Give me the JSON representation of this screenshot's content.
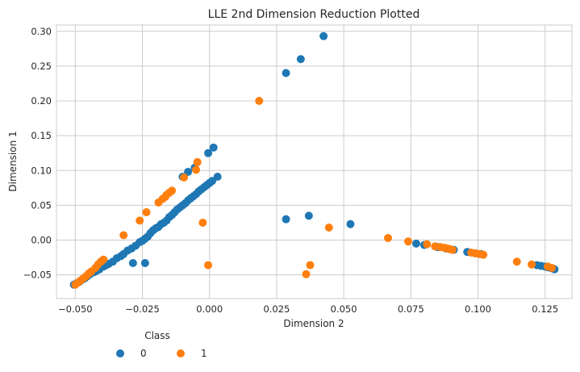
{
  "chart_data": {
    "type": "scatter",
    "title": "LLE 2nd Dimension Reduction Plotted",
    "xlabel": "Dimension 2",
    "ylabel": "Dimension 1",
    "xlim": [
      -0.057,
      0.135
    ],
    "ylim": [
      -0.084,
      0.309
    ],
    "xticks": [
      -0.05,
      -0.025,
      0.0,
      0.025,
      0.05,
      0.075,
      0.1,
      0.125
    ],
    "xtick_labels": [
      "−0.050",
      "−0.025",
      "0.000",
      "0.025",
      "0.050",
      "0.075",
      "0.100",
      "0.125"
    ],
    "yticks": [
      -0.05,
      0.0,
      0.05,
      0.1,
      0.15,
      0.2,
      0.25,
      0.3
    ],
    "ytick_labels": [
      "−0.05",
      "0.00",
      "0.05",
      "0.10",
      "0.15",
      "0.20",
      "0.25",
      "0.30"
    ],
    "grid": true,
    "legend": {
      "title": "Class",
      "placement": "below-left",
      "entries": [
        "0",
        "1"
      ]
    },
    "series": [
      {
        "name": "0",
        "color": "#1f77b4",
        "points": [
          [
            -0.0505,
            -0.064
          ],
          [
            -0.0495,
            -0.062
          ],
          [
            -0.0485,
            -0.06
          ],
          [
            -0.0475,
            -0.057
          ],
          [
            -0.0465,
            -0.055
          ],
          [
            -0.0455,
            -0.052
          ],
          [
            -0.0445,
            -0.049
          ],
          [
            -0.043,
            -0.046
          ],
          [
            -0.042,
            -0.044
          ],
          [
            -0.041,
            -0.042
          ],
          [
            -0.0395,
            -0.038
          ],
          [
            -0.0385,
            -0.036
          ],
          [
            -0.0375,
            -0.034
          ],
          [
            -0.036,
            -0.031
          ],
          [
            -0.0345,
            -0.026
          ],
          [
            -0.033,
            -0.023
          ],
          [
            -0.032,
            -0.02
          ],
          [
            -0.0305,
            -0.015
          ],
          [
            -0.029,
            -0.012
          ],
          [
            -0.0275,
            -0.008
          ],
          [
            -0.026,
            -0.003
          ],
          [
            -0.025,
            -0.001
          ],
          [
            -0.024,
            0.002
          ],
          [
            -0.023,
            0.005
          ],
          [
            -0.022,
            0.01
          ],
          [
            -0.021,
            0.014
          ],
          [
            -0.02,
            0.017
          ],
          [
            -0.019,
            0.019
          ],
          [
            -0.018,
            0.023
          ],
          [
            -0.017,
            0.025
          ],
          [
            -0.016,
            0.028
          ],
          [
            -0.015,
            0.033
          ],
          [
            -0.014,
            0.036
          ],
          [
            -0.013,
            0.04
          ],
          [
            -0.012,
            0.044
          ],
          [
            -0.011,
            0.047
          ],
          [
            -0.01,
            0.05
          ],
          [
            -0.009,
            0.053
          ],
          [
            -0.008,
            0.057
          ],
          [
            -0.007,
            0.06
          ],
          [
            -0.006,
            0.063
          ],
          [
            -0.005,
            0.066
          ],
          [
            -0.004,
            0.07
          ],
          [
            -0.003,
            0.073
          ],
          [
            -0.002,
            0.076
          ],
          [
            -0.001,
            0.079
          ],
          [
            0.0,
            0.082
          ],
          [
            0.001,
            0.085
          ],
          [
            0.003,
            0.091
          ],
          [
            -0.01,
            0.091
          ],
          [
            -0.008,
            0.098
          ],
          [
            -0.0055,
            0.104
          ],
          [
            -0.0005,
            0.125
          ],
          [
            0.0015,
            0.133
          ],
          [
            -0.0285,
            -0.033
          ],
          [
            -0.024,
            -0.033
          ],
          [
            0.0285,
            0.24
          ],
          [
            0.034,
            0.26
          ],
          [
            0.0425,
            0.293
          ],
          [
            0.0285,
            0.03
          ],
          [
            0.037,
            0.035
          ],
          [
            0.0525,
            0.023
          ],
          [
            0.077,
            -0.005
          ],
          [
            0.08,
            -0.007
          ],
          [
            0.085,
            -0.01
          ],
          [
            0.088,
            -0.012
          ],
          [
            0.091,
            -0.014
          ],
          [
            0.096,
            -0.017
          ],
          [
            0.099,
            -0.019
          ],
          [
            0.101,
            -0.02
          ],
          [
            0.122,
            -0.036
          ],
          [
            0.1235,
            -0.037
          ],
          [
            0.125,
            -0.038
          ],
          [
            0.126,
            -0.039
          ],
          [
            0.127,
            -0.04
          ],
          [
            0.128,
            -0.041
          ],
          [
            0.1285,
            -0.042
          ]
        ]
      },
      {
        "name": "1",
        "color": "#ff7f0e",
        "points": [
          [
            -0.05,
            -0.064
          ],
          [
            -0.049,
            -0.061
          ],
          [
            -0.048,
            -0.058
          ],
          [
            -0.047,
            -0.055
          ],
          [
            -0.046,
            -0.052
          ],
          [
            -0.045,
            -0.048
          ],
          [
            -0.044,
            -0.045
          ],
          [
            -0.0425,
            -0.04
          ],
          [
            -0.0415,
            -0.035
          ],
          [
            -0.0405,
            -0.031
          ],
          [
            -0.0395,
            -0.028
          ],
          [
            -0.032,
            0.007
          ],
          [
            -0.026,
            0.028
          ],
          [
            -0.0235,
            0.04
          ],
          [
            -0.019,
            0.054
          ],
          [
            -0.0175,
            0.059
          ],
          [
            -0.0165,
            0.062
          ],
          [
            -0.016,
            0.065
          ],
          [
            -0.015,
            0.068
          ],
          [
            -0.014,
            0.071
          ],
          [
            -0.0095,
            0.09
          ],
          [
            -0.005,
            0.101
          ],
          [
            -0.0045,
            0.112
          ],
          [
            -0.0025,
            0.025
          ],
          [
            -0.0005,
            -0.036
          ],
          [
            0.0185,
            0.2
          ],
          [
            0.036,
            -0.049
          ],
          [
            0.0375,
            -0.036
          ],
          [
            0.0445,
            0.018
          ],
          [
            0.0665,
            0.003
          ],
          [
            0.074,
            -0.002
          ],
          [
            0.081,
            -0.006
          ],
          [
            0.084,
            -0.009
          ],
          [
            0.086,
            -0.01
          ],
          [
            0.0875,
            -0.011
          ],
          [
            0.0885,
            -0.012
          ],
          [
            0.0895,
            -0.013
          ],
          [
            0.0905,
            -0.014
          ],
          [
            0.0975,
            -0.018
          ],
          [
            0.099,
            -0.019
          ],
          [
            0.1005,
            -0.02
          ],
          [
            0.102,
            -0.021
          ],
          [
            0.1145,
            -0.031
          ],
          [
            0.12,
            -0.035
          ],
          [
            0.126,
            -0.038
          ],
          [
            0.1275,
            -0.04
          ]
        ]
      }
    ]
  }
}
